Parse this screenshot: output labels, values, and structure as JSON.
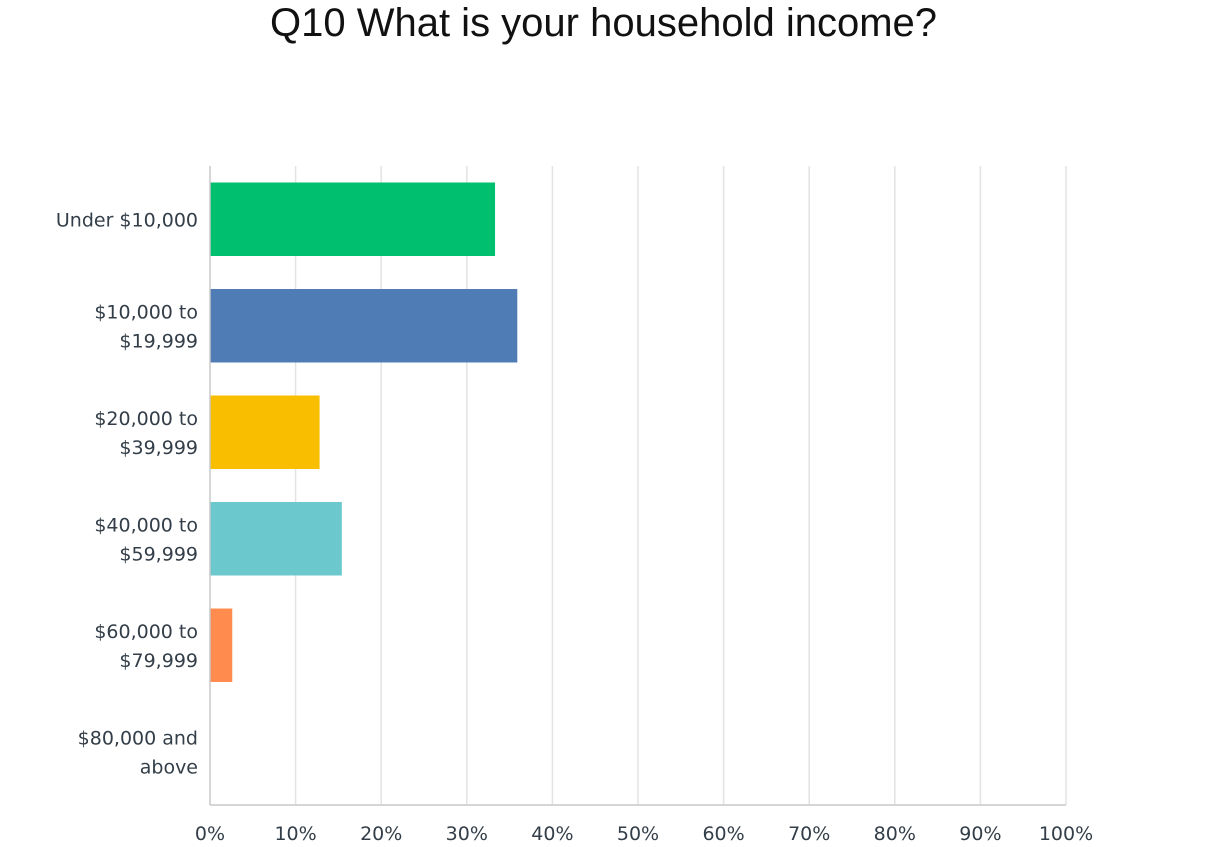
{
  "chart_data": {
    "type": "bar",
    "orientation": "horizontal",
    "title": "Q10 What is your household income?",
    "categories": [
      [
        "Under $10,000"
      ],
      [
        "$10,000 to",
        "$19,999"
      ],
      [
        "$20,000 to",
        "$39,999"
      ],
      [
        "$40,000 to",
        "$59,999"
      ],
      [
        "$60,000 to",
        "$79,999"
      ],
      [
        "$80,000 and",
        "above"
      ]
    ],
    "values": [
      33.3,
      35.9,
      12.8,
      15.4,
      2.6,
      0
    ],
    "colors": [
      "#00bf6f",
      "#507cb6",
      "#f9be00",
      "#6bc8cd",
      "#ff8b4f",
      "#7d5ca6"
    ],
    "xlim": [
      0,
      100
    ],
    "x_ticks": [
      "0%",
      "10%",
      "20%",
      "30%",
      "40%",
      "50%",
      "60%",
      "70%",
      "80%",
      "90%",
      "100%"
    ],
    "grid": true,
    "xlabel": "",
    "ylabel": ""
  }
}
